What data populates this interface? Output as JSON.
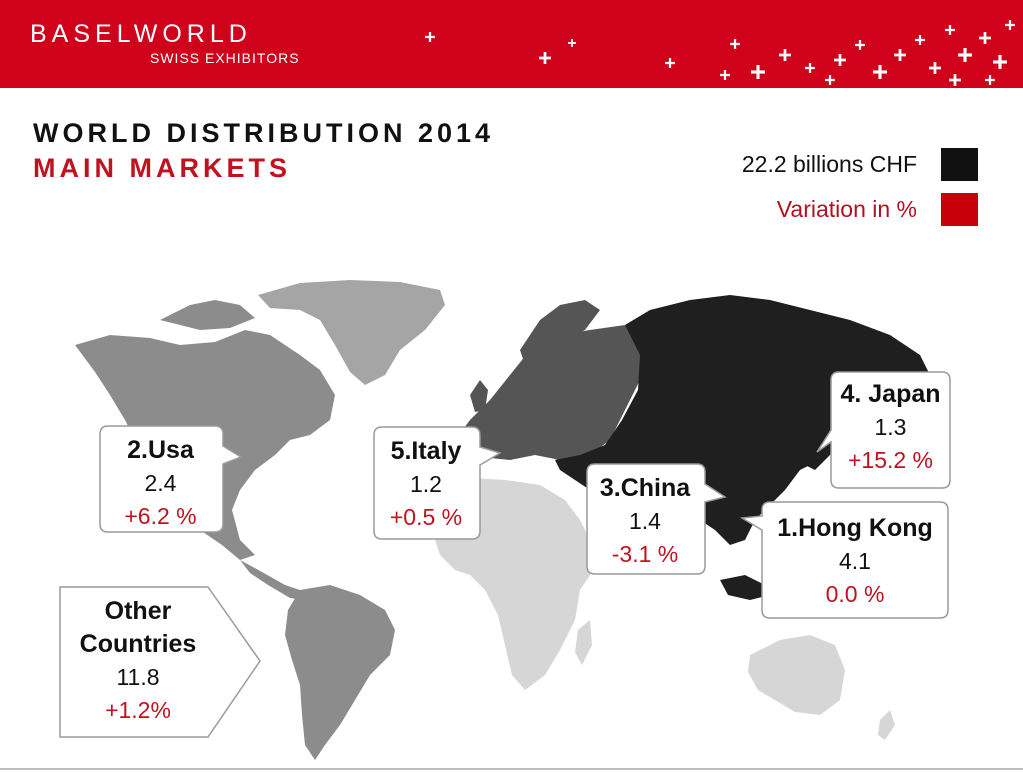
{
  "header": {
    "brand": "BASELWORLD",
    "subtitle": "SWISS EXHIBITORS",
    "background": "#d0021b"
  },
  "title": {
    "line1": "WORLD DISTRIBUTION 2014",
    "line2": "MAIN MARKETS",
    "line2_color": "#c0121f"
  },
  "legend": [
    {
      "label": "22.2 billions CHF",
      "color": "#111111",
      "text_color": "#111111"
    },
    {
      "label": "Variation in %",
      "color": "#c8000a",
      "text_color": "#b0121f"
    }
  ],
  "markets": [
    {
      "rank_label": "1.Hong Kong",
      "value": "4.1",
      "variation": "0.0 %"
    },
    {
      "rank_label": "2.Usa",
      "value": "2.4",
      "variation": "+6.2 %"
    },
    {
      "rank_label": "3.China",
      "value": "1.4",
      "variation": "-3.1 %"
    },
    {
      "rank_label": "4. Japan",
      "value": "1.3",
      "variation": "+15.2 %"
    },
    {
      "rank_label": "5.Italy",
      "value": "1.2",
      "variation": "+0.5 %"
    },
    {
      "rank_label": "Other Countries",
      "value": "11.8",
      "variation": "+1.2%"
    }
  ],
  "colors": {
    "variation_text": "#c0121f",
    "asia": "#1f1f1f",
    "europe": "#555555",
    "americas": "#8c8c8c",
    "greenland": "#a5a5a5",
    "africa": "#d6d6d6"
  }
}
